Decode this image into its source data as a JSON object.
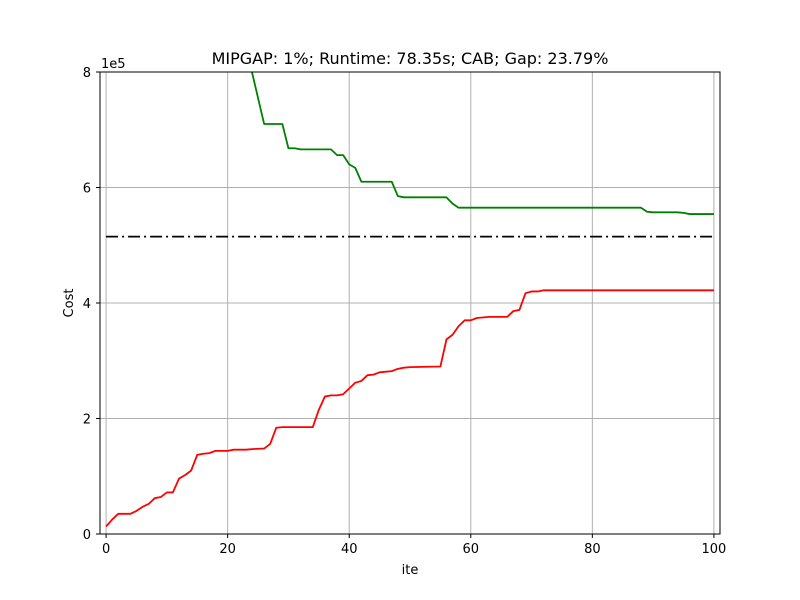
{
  "chart_data": {
    "type": "line",
    "title": "MIPGAP: 1%; Runtime: 78.35s; CAB; Gap: 23.79%",
    "xlabel": "ite",
    "ylabel": "Cost",
    "y_multiplier_label": "1e5",
    "xlim": [
      -1,
      101
    ],
    "ylim": [
      0,
      8
    ],
    "xticks": [
      0,
      20,
      40,
      60,
      80,
      100
    ],
    "yticks": [
      0,
      2,
      4,
      6,
      8
    ],
    "grid": true,
    "colors": {
      "upper": "#008000",
      "lower": "#ff0000",
      "reference": "#000000"
    },
    "series": [
      {
        "style": "solid",
        "color": "#008000",
        "points": [
          [
            24,
            8.0
          ],
          [
            26,
            7.1
          ],
          [
            29,
            7.1
          ],
          [
            30,
            6.68
          ],
          [
            31,
            6.68
          ],
          [
            32,
            6.66
          ],
          [
            37,
            6.66
          ],
          [
            38,
            6.56
          ],
          [
            39,
            6.56
          ],
          [
            40,
            6.4
          ],
          [
            41,
            6.34
          ],
          [
            42,
            6.1
          ],
          [
            47,
            6.1
          ],
          [
            48,
            5.85
          ],
          [
            49,
            5.83
          ],
          [
            56,
            5.83
          ],
          [
            57,
            5.72
          ],
          [
            58,
            5.65
          ],
          [
            88,
            5.65
          ],
          [
            89,
            5.58
          ],
          [
            90,
            5.57
          ],
          [
            94,
            5.57
          ],
          [
            95,
            5.56
          ],
          [
            96,
            5.54
          ],
          [
            100,
            5.54
          ]
        ]
      },
      {
        "style": "solid",
        "color": "#ff0000",
        "points": [
          [
            0,
            0.13
          ],
          [
            1,
            0.25
          ],
          [
            2,
            0.35
          ],
          [
            4,
            0.35
          ],
          [
            5,
            0.4
          ],
          [
            6,
            0.47
          ],
          [
            7,
            0.52
          ],
          [
            8,
            0.62
          ],
          [
            9,
            0.64
          ],
          [
            10,
            0.72
          ],
          [
            11,
            0.72
          ],
          [
            12,
            0.96
          ],
          [
            13,
            1.02
          ],
          [
            14,
            1.1
          ],
          [
            15,
            1.37
          ],
          [
            16,
            1.39
          ],
          [
            17,
            1.4
          ],
          [
            18,
            1.44
          ],
          [
            20,
            1.44
          ],
          [
            21,
            1.46
          ],
          [
            23,
            1.46
          ],
          [
            24,
            1.47
          ],
          [
            26,
            1.48
          ],
          [
            27,
            1.56
          ],
          [
            28,
            1.84
          ],
          [
            29,
            1.85
          ],
          [
            34,
            1.85
          ],
          [
            35,
            2.15
          ],
          [
            36,
            2.38
          ],
          [
            37,
            2.4
          ],
          [
            38,
            2.4
          ],
          [
            39,
            2.42
          ],
          [
            40,
            2.52
          ],
          [
            41,
            2.62
          ],
          [
            42,
            2.65
          ],
          [
            43,
            2.75
          ],
          [
            44,
            2.76
          ],
          [
            45,
            2.8
          ],
          [
            47,
            2.82
          ],
          [
            48,
            2.86
          ],
          [
            49,
            2.88
          ],
          [
            50,
            2.89
          ],
          [
            55,
            2.9
          ],
          [
            56,
            3.37
          ],
          [
            57,
            3.45
          ],
          [
            58,
            3.6
          ],
          [
            59,
            3.7
          ],
          [
            60,
            3.7
          ],
          [
            61,
            3.74
          ],
          [
            63,
            3.76
          ],
          [
            66,
            3.76
          ],
          [
            67,
            3.86
          ],
          [
            68,
            3.88
          ],
          [
            69,
            4.17
          ],
          [
            70,
            4.2
          ],
          [
            71,
            4.2
          ],
          [
            72,
            4.22
          ],
          [
            100,
            4.22
          ]
        ]
      },
      {
        "style": "dashdot",
        "color": "#000000",
        "points": [
          [
            0,
            5.15
          ],
          [
            100,
            5.15
          ]
        ]
      }
    ]
  }
}
